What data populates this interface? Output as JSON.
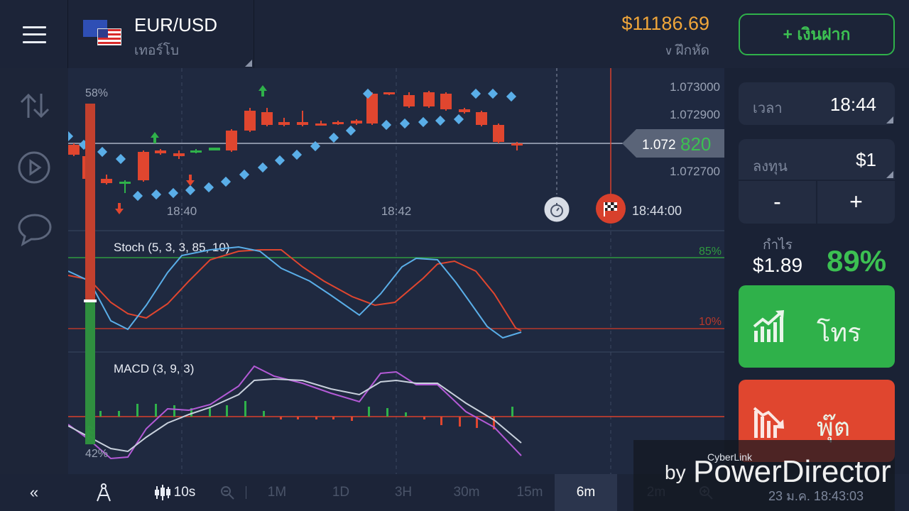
{
  "header": {
    "asset_name": "EUR/USD",
    "asset_type": "เทอร์โบ",
    "balance": "$11186.69",
    "withdraw_label": "ฝึกหัด",
    "deposit_label": "+ เงินฝาก"
  },
  "chart": {
    "price_ticks": [
      "1.073000",
      "1.072900",
      "1.072700"
    ],
    "current_price_main": "1.072",
    "current_price_tail": "820",
    "time_ticks": [
      "18:40",
      "18:42"
    ],
    "expiry_time": "18:44:00",
    "sentiment_top": "58%",
    "sentiment_bottom": "42%",
    "sentiment_top_marks": "????",
    "sentiment_bottom_marks": "???",
    "stoch_label": "Stoch  (5,  3,  3,  85,  10)",
    "stoch_high": "85%",
    "stoch_low": "10%",
    "macd_label": "MACD  (3,  9,  3)",
    "colors": {
      "up": "#2fb14a",
      "down": "#e0462f",
      "dots": "#5aaee8",
      "stoch_blue": "#5aaee8",
      "stoch_red": "#e0462f",
      "macd_purple": "#b35ad6",
      "macd_white": "#c8d0dc"
    }
  },
  "right_panel": {
    "time_label": "เวลา",
    "time_value": "18:44",
    "invest_label": "ลงทุน",
    "invest_value": "$1",
    "minus_label": "-",
    "plus_label": "+",
    "profit_label": "กำไร",
    "profit_value": "$1.89",
    "profit_percent": "89%",
    "call_label": "โทร",
    "put_label": "พุ๊ต"
  },
  "bottom_bar": {
    "candle_interval": "10s",
    "timeframes": [
      "1M",
      "1D",
      "3H",
      "30m",
      "15m",
      "6m",
      "2m"
    ],
    "active_timeframe": "6m"
  },
  "watermark": {
    "brand": "CyberLink",
    "by": "by",
    "product": "PowerDirector",
    "date": "23 ม.ค. 18:43:03"
  },
  "icons": [
    "menu-icon",
    "swap-arrows-icon",
    "play-icon",
    "chat-icon",
    "stopwatch-icon",
    "finish-flag-icon",
    "collapse-icon",
    "compass-icon",
    "candlestick-icon",
    "zoom-out-icon",
    "zoom-in-icon",
    "trend-up-icon",
    "trend-down-icon",
    "chevron-down-icon"
  ]
}
